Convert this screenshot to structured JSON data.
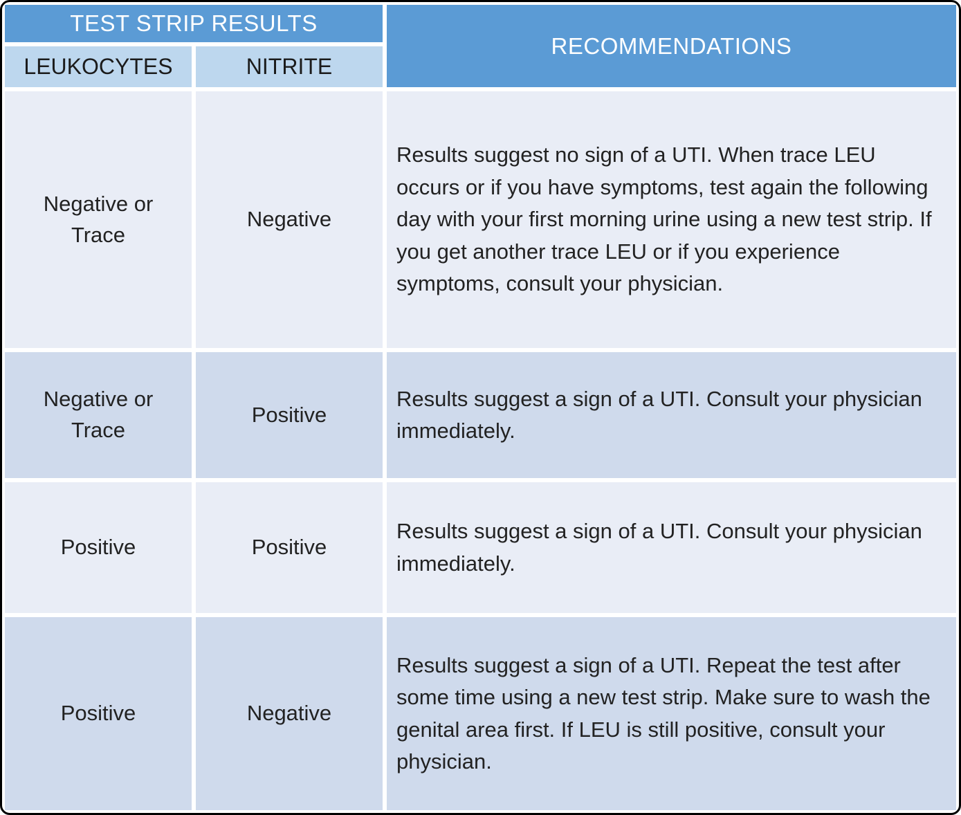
{
  "table": {
    "header": {
      "group_title": "TEST STRIP RESULTS",
      "leukocytes_label": "LEUKOCYTES",
      "nitrite_label": "NITRITE",
      "recommendations_label": "RECOMMENDATIONS"
    },
    "rows": [
      {
        "leukocytes": "Negative or Trace",
        "nitrite": "Negative",
        "recommendation": "Results suggest no sign of a UTI. When trace LEU occurs or if you have symptoms, test again the following day with your first morning urine using a new test strip. If you get another trace LEU or if you experience symptoms, consult your physician."
      },
      {
        "leukocytes": "Negative or Trace",
        "nitrite": "Positive",
        "recommendation": "Results suggest a sign of a UTI. Consult your physician immediately."
      },
      {
        "leukocytes": "Positive",
        "nitrite": "Positive",
        "recommendation": "Results suggest a sign of a UTI. Consult your physician immediately."
      },
      {
        "leukocytes": "Positive",
        "nitrite": "Negative",
        "recommendation": "Results suggest a sign of a UTI. Repeat the test after some time using a new test strip. Make sure to wash the genital area first. If LEU is still positive, consult your physician."
      }
    ],
    "colors": {
      "header_blue": "#5B9BD5",
      "subheader_blue": "#BDD7EE",
      "row_light": "#E9EDF6",
      "row_medium": "#CFDAEC",
      "header_text": "#FFFFFF",
      "body_text": "#222222",
      "divider": "#FFFFFF",
      "outer_border": "#000000"
    }
  }
}
